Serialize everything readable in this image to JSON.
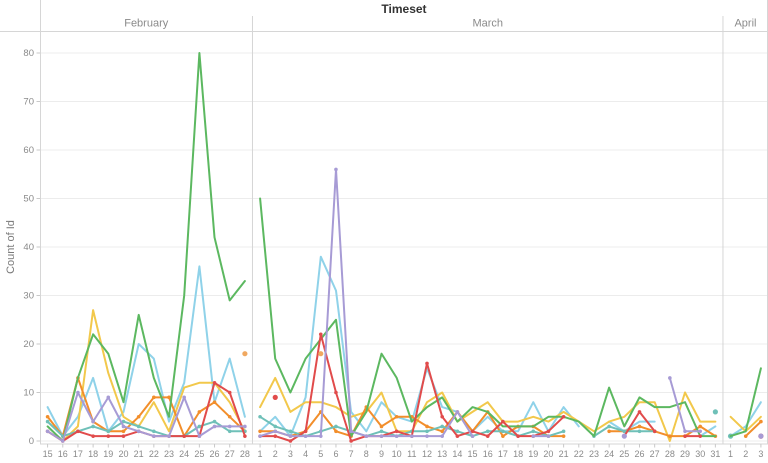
{
  "title": "Timeset",
  "y_axis": {
    "title": "Count of Id",
    "ticks": [
      0,
      10,
      20,
      30,
      40,
      50,
      60,
      70,
      80
    ]
  },
  "panels": [
    {
      "label": "February",
      "days": [
        15,
        16,
        17,
        18,
        19,
        20,
        21,
        22,
        23,
        24,
        25,
        26,
        27,
        28
      ]
    },
    {
      "label": "March",
      "days": [
        1,
        2,
        3,
        4,
        5,
        6,
        7,
        8,
        9,
        10,
        11,
        12,
        13,
        14,
        15,
        16,
        17,
        18,
        19,
        20,
        21,
        22,
        23,
        24,
        25,
        26,
        27,
        28,
        29,
        30,
        31
      ]
    },
    {
      "label": "April",
      "days": [
        1,
        2,
        3
      ]
    }
  ],
  "chart_data": {
    "type": "line",
    "title": "Timeset",
    "xlabel": "",
    "ylabel": "Count of Id",
    "ylim": [
      0,
      85
    ],
    "grid": "horizontal, every 10",
    "legend_position": "none",
    "x_note": "48 consecutive days split into three panes: Feb 15-28, Mar 1-31, Apr 1-3; lines do not cross pane boundaries",
    "series": [
      {
        "name": "light-blue",
        "color": "#8FD2E9",
        "markers": false,
        "values": [
          7,
          1,
          5,
          13,
          2,
          6,
          20,
          17,
          4,
          12,
          36,
          8,
          17,
          5,
          2,
          5,
          1,
          9,
          38,
          31,
          6,
          2,
          8,
          5,
          4,
          15,
          7,
          6,
          2,
          5,
          2,
          2,
          8,
          2,
          7,
          3,
          null,
          4,
          2,
          4,
          4,
          null,
          null,
          1,
          3,
          1,
          3,
          8
        ]
      },
      {
        "name": "yellow",
        "color": "#F2C84B",
        "markers": false,
        "values": [
          2,
          0,
          3,
          27,
          14,
          5,
          3,
          8,
          2,
          11,
          12,
          12,
          8,
          2,
          7,
          13,
          6,
          8,
          8,
          7,
          5,
          6,
          10,
          2,
          2,
          8,
          10,
          4,
          6,
          8,
          4,
          4,
          5,
          4,
          6,
          4,
          2,
          4,
          5,
          8,
          8,
          0,
          10,
          4,
          4,
          5,
          2,
          5
        ]
      },
      {
        "name": "orange",
        "color": "#F28E2B",
        "markers": true,
        "values": [
          5,
          1,
          13,
          4,
          2,
          2,
          5,
          9,
          9,
          1,
          6,
          8,
          5,
          2,
          2,
          2,
          1,
          2,
          6,
          2,
          1,
          7,
          3,
          5,
          5,
          3,
          2,
          6,
          2,
          6,
          1,
          3,
          3,
          1,
          1,
          null,
          null,
          2,
          2,
          3,
          2,
          1,
          1,
          3,
          1,
          null,
          1,
          4
        ]
      },
      {
        "name": "teal",
        "color": "#6FC0B8",
        "markers": true,
        "values": [
          4,
          1,
          2,
          3,
          2,
          4,
          3,
          2,
          1,
          1,
          3,
          4,
          2,
          2,
          5,
          3,
          2,
          1,
          2,
          3,
          2,
          1,
          2,
          1,
          2,
          2,
          3,
          2,
          1,
          2,
          2,
          1,
          2,
          1,
          2,
          null,
          1,
          3,
          2,
          2,
          2,
          null,
          null,
          null,
          6,
          1,
          null,
          null
        ]
      },
      {
        "name": "green",
        "color": "#5CB860",
        "markers": false,
        "values": [
          3,
          0,
          13,
          22,
          18,
          8,
          26,
          13,
          5,
          30,
          80,
          42,
          29,
          33,
          50,
          17,
          10,
          17,
          21,
          25,
          1,
          6,
          18,
          13,
          4,
          7,
          9,
          4,
          7,
          6,
          3,
          3,
          3,
          5,
          5,
          4,
          1,
          11,
          3,
          9,
          7,
          7,
          8,
          1,
          1,
          1,
          2,
          15
        ]
      },
      {
        "name": "red",
        "color": "#E14B4B",
        "markers": true,
        "values": [
          2,
          0,
          2,
          1,
          1,
          1,
          2,
          1,
          1,
          1,
          1,
          12,
          10,
          1,
          1,
          1,
          0,
          2,
          22,
          10,
          0,
          1,
          1,
          2,
          1,
          16,
          5,
          1,
          2,
          1,
          4,
          1,
          1,
          2,
          5,
          null,
          null,
          null,
          1,
          6,
          2,
          null,
          1,
          1,
          null,
          null,
          null,
          1
        ]
      },
      {
        "name": "purple",
        "color": "#A79BD5",
        "markers": true,
        "values": [
          2,
          0,
          10,
          4,
          9,
          3,
          2,
          1,
          1,
          9,
          1,
          3,
          3,
          3,
          1,
          2,
          1,
          1,
          1,
          56,
          2,
          1,
          1,
          1,
          1,
          1,
          1,
          6,
          1,
          null,
          null,
          null,
          1,
          1,
          null,
          null,
          null,
          null,
          1,
          null,
          null,
          13,
          2,
          2,
          null,
          null,
          null,
          1
        ]
      },
      {
        "name": "amber",
        "color": "#F0A860",
        "markers": false,
        "values": [
          null,
          null,
          null,
          null,
          null,
          null,
          null,
          null,
          null,
          null,
          null,
          null,
          null,
          18,
          null,
          null,
          null,
          null,
          18,
          null,
          null,
          null,
          null,
          null,
          null,
          null,
          null,
          null,
          null,
          null,
          null,
          null,
          null,
          null,
          null,
          null,
          null,
          null,
          null,
          null,
          null,
          null,
          null,
          null,
          null,
          null,
          null,
          null
        ]
      }
    ],
    "extra_dots": [
      {
        "series": "red",
        "index": 15,
        "value": 9
      }
    ]
  }
}
